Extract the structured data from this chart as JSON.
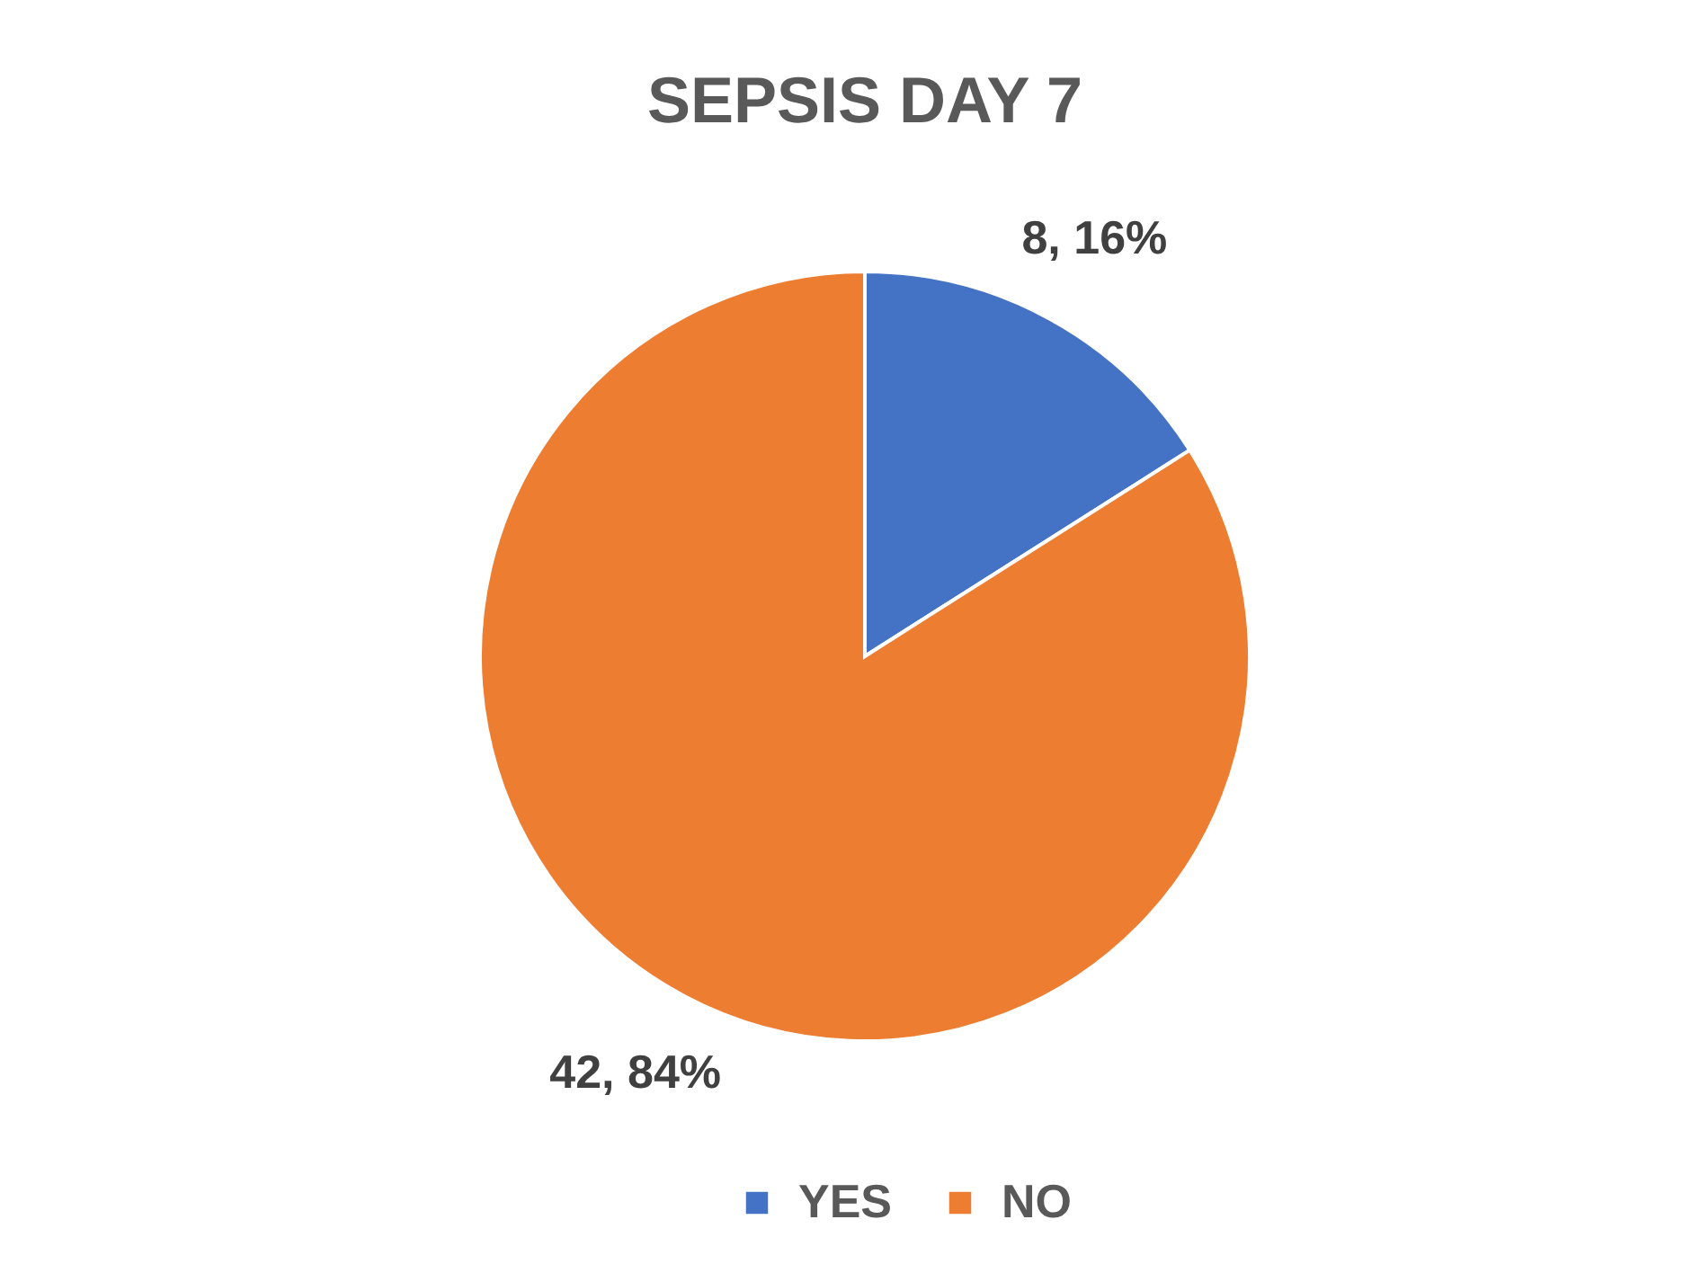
{
  "chart_data": {
    "type": "pie",
    "title": "SEPSIS DAY 7",
    "categories": [
      "YES",
      "NO"
    ],
    "values": [
      8,
      42
    ],
    "colors": [
      "#4472c4",
      "#ed7d31"
    ],
    "value_labels": [
      "8, 16%",
      "42, 84%"
    ],
    "legend": "bottom"
  }
}
